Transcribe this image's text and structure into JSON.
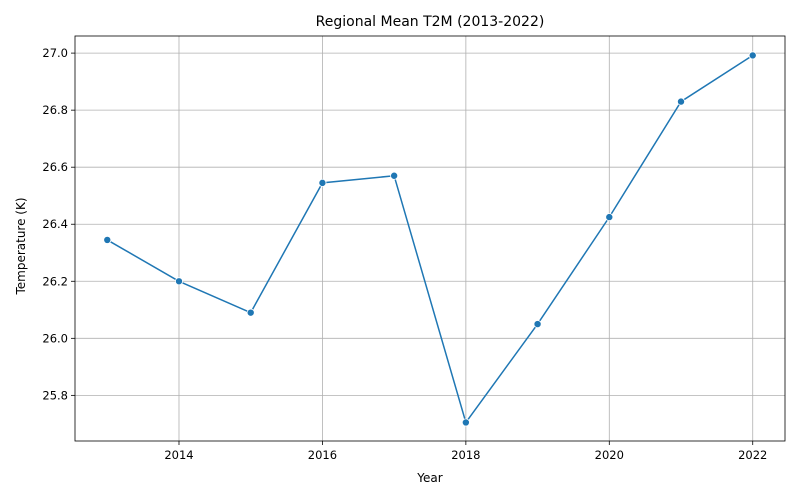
{
  "chart_data": {
    "type": "line",
    "title": "Regional Mean T2M (2013-2022)",
    "xlabel": "Year",
    "ylabel": "Temperature (K)",
    "x": [
      2013,
      2014,
      2015,
      2016,
      2017,
      2018,
      2019,
      2020,
      2021,
      2022
    ],
    "series": [
      {
        "name": "T2M",
        "values": [
          26.345,
          26.2,
          26.09,
          26.545,
          26.57,
          25.705,
          26.05,
          26.425,
          26.83,
          26.992
        ],
        "color": "#1f77b4",
        "marker": "circle"
      }
    ],
    "xlim": [
      2012.55,
      2022.45
    ],
    "ylim": [
      25.64,
      27.06
    ],
    "xticks": [
      "2014",
      "2016",
      "2018",
      "2020",
      "2022"
    ],
    "yticks": [
      "25.8",
      "26.0",
      "26.2",
      "26.4",
      "26.6",
      "26.8",
      "27.0"
    ],
    "grid": true
  }
}
